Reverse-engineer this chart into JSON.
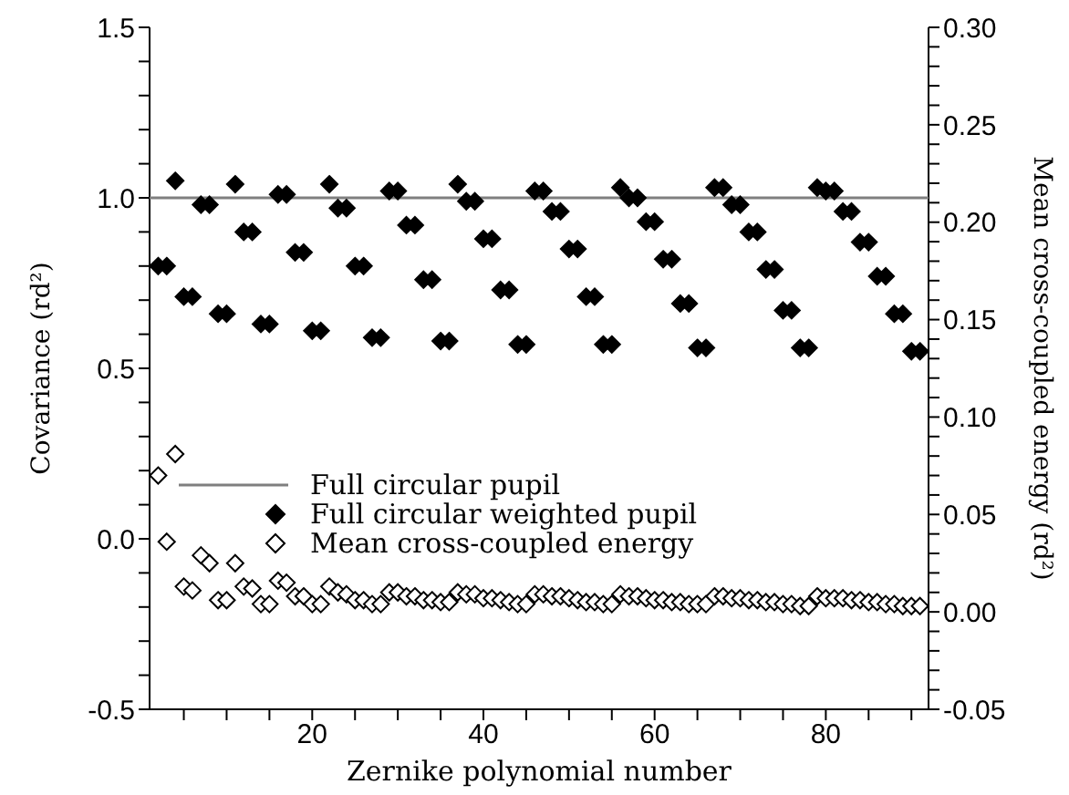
{
  "chart_data": {
    "type": "scatter",
    "xlabel": "Zernike polynomial number",
    "ylabel": "Covariance (rd²)",
    "y2label": "Mean cross-coupled energy (rd²)",
    "xlim": [
      1,
      92
    ],
    "xticks": [
      {
        "value": 5,
        "label": null
      },
      {
        "value": 10,
        "label": null
      },
      {
        "value": 15,
        "label": null
      },
      20,
      {
        "value": 25,
        "label": null
      },
      {
        "value": 30,
        "label": null
      },
      {
        "value": 35,
        "label": null
      },
      40,
      {
        "value": 45,
        "label": null
      },
      {
        "value": 50,
        "label": null
      },
      {
        "value": 55,
        "label": null
      },
      60,
      {
        "value": 65,
        "label": null
      },
      {
        "value": 70,
        "label": null
      },
      {
        "value": 75,
        "label": null
      },
      80,
      {
        "value": 85,
        "label": null
      },
      {
        "value": 90,
        "label": null
      }
    ],
    "ylim": [
      -0.5,
      1.5
    ],
    "yticks": [
      {
        "value": -0.5,
        "label": "-0.5"
      },
      {
        "value": -0.4,
        "label": null
      },
      {
        "value": -0.3,
        "label": null
      },
      {
        "value": -0.2,
        "label": null
      },
      {
        "value": -0.1,
        "label": null
      },
      {
        "value": 0,
        "label": "0.0"
      },
      {
        "value": 0.1,
        "label": null
      },
      {
        "value": 0.2,
        "label": null
      },
      {
        "value": 0.3,
        "label": null
      },
      {
        "value": 0.4,
        "label": null
      },
      {
        "value": 0.5,
        "label": "0.5"
      },
      {
        "value": 0.6,
        "label": null
      },
      {
        "value": 0.7,
        "label": null
      },
      {
        "value": 0.8,
        "label": null
      },
      {
        "value": 0.9,
        "label": null
      },
      {
        "value": 1,
        "label": "1.0"
      },
      {
        "value": 1.1,
        "label": null
      },
      {
        "value": 1.2,
        "label": null
      },
      {
        "value": 1.3,
        "label": null
      },
      {
        "value": 1.4,
        "label": null
      },
      {
        "value": 1.5,
        "label": "1.5"
      }
    ],
    "y2lim": [
      -0.05,
      0.3
    ],
    "y2ticks": [
      {
        "value": -0.05,
        "label": "-0.05"
      },
      {
        "value": -0.04,
        "label": null
      },
      {
        "value": -0.03,
        "label": null
      },
      {
        "value": -0.02,
        "label": null
      },
      {
        "value": -0.01,
        "label": null
      },
      {
        "value": 0,
        "label": "0.00"
      },
      {
        "value": 0.01,
        "label": null
      },
      {
        "value": 0.02,
        "label": null
      },
      {
        "value": 0.03,
        "label": null
      },
      {
        "value": 0.04,
        "label": null
      },
      {
        "value": 0.05,
        "label": "0.05"
      },
      {
        "value": 0.06,
        "label": null
      },
      {
        "value": 0.07,
        "label": null
      },
      {
        "value": 0.08,
        "label": null
      },
      {
        "value": 0.09,
        "label": null
      },
      {
        "value": 0.1,
        "label": "0.10"
      },
      {
        "value": 0.11,
        "label": null
      },
      {
        "value": 0.12,
        "label": null
      },
      {
        "value": 0.13,
        "label": null
      },
      {
        "value": 0.14,
        "label": null
      },
      {
        "value": 0.15,
        "label": "0.15"
      },
      {
        "value": 0.16,
        "label": null
      },
      {
        "value": 0.17,
        "label": null
      },
      {
        "value": 0.18,
        "label": null
      },
      {
        "value": 0.19,
        "label": null
      },
      {
        "value": 0.2,
        "label": "0.20"
      },
      {
        "value": 0.21,
        "label": null
      },
      {
        "value": 0.22,
        "label": null
      },
      {
        "value": 0.23,
        "label": null
      },
      {
        "value": 0.24,
        "label": null
      },
      {
        "value": 0.25,
        "label": "0.25"
      },
      {
        "value": 0.26,
        "label": null
      },
      {
        "value": 0.27,
        "label": null
      },
      {
        "value": 0.28,
        "label": null
      },
      {
        "value": 0.29,
        "label": null
      },
      {
        "value": 0.3,
        "label": "0.30"
      }
    ],
    "legend": "left",
    "x": [
      2,
      3,
      4,
      5,
      6,
      7,
      8,
      9,
      10,
      11,
      12,
      13,
      14,
      15,
      16,
      17,
      18,
      19,
      20,
      21,
      22,
      23,
      24,
      25,
      26,
      27,
      28,
      29,
      30,
      31,
      32,
      33,
      34,
      35,
      36,
      37,
      38,
      39,
      40,
      41,
      42,
      43,
      44,
      45,
      46,
      47,
      48,
      49,
      50,
      51,
      52,
      53,
      54,
      55,
      56,
      57,
      58,
      59,
      60,
      61,
      62,
      63,
      64,
      65,
      66,
      67,
      68,
      69,
      70,
      71,
      72,
      73,
      74,
      75,
      76,
      77,
      78,
      79,
      80,
      81,
      82,
      83,
      84,
      85,
      86,
      87,
      88,
      89,
      90,
      91
    ],
    "series": [
      {
        "name": "Full circular pupil",
        "type": "line",
        "color": "#7f7f7f",
        "marker": "none",
        "x": [
          1,
          92
        ],
        "values": [
          1,
          1
        ]
      },
      {
        "name": "Full circular weighted pupil",
        "color": "#000000",
        "marker": "diamond",
        "values": [
          0.8,
          0.8,
          1.05,
          0.71,
          0.71,
          0.98,
          0.98,
          0.66,
          0.66,
          1.04,
          0.9,
          0.9,
          0.63,
          0.63,
          1.01,
          1.01,
          0.84,
          0.84,
          0.61,
          0.61,
          1.04,
          0.97,
          0.97,
          0.8,
          0.8,
          0.59,
          0.59,
          1.02,
          1.02,
          0.92,
          0.92,
          0.76,
          0.76,
          0.58,
          0.58,
          1.04,
          0.99,
          0.99,
          0.88,
          0.88,
          0.73,
          0.73,
          0.57,
          0.57,
          1.02,
          1.02,
          0.96,
          0.96,
          0.85,
          0.85,
          0.71,
          0.71,
          0.57,
          0.57,
          1.03,
          1.0,
          1.0,
          0.93,
          0.93,
          0.82,
          0.82,
          0.69,
          0.69,
          0.56,
          0.56,
          1.03,
          1.03,
          0.98,
          0.98,
          0.9,
          0.9,
          0.79,
          0.79,
          0.67,
          0.67,
          0.56,
          0.56,
          1.03,
          1.02,
          1.02,
          0.96,
          0.96,
          0.87,
          0.87,
          0.77,
          0.77,
          0.66,
          0.66,
          0.55,
          0.55
        ]
      },
      {
        "name": "Mean cross-coupled energy",
        "color": "#000000",
        "marker": "diamond",
        "axis": "y2",
        "values": [
          0.07,
          0.036,
          0.081,
          0.013,
          0.011,
          0.029,
          0.025,
          0.006,
          0.006,
          0.025,
          0.013,
          0.012,
          0.004,
          0.004,
          0.016,
          0.015,
          0.008,
          0.008,
          0.004,
          0.004,
          0.013,
          0.01,
          0.009,
          0.006,
          0.006,
          0.004,
          0.004,
          0.01,
          0.01,
          0.008,
          0.008,
          0.006,
          0.006,
          0.005,
          0.005,
          0.01,
          0.009,
          0.009,
          0.007,
          0.007,
          0.006,
          0.005,
          0.004,
          0.004,
          0.009,
          0.009,
          0.008,
          0.008,
          0.007,
          0.006,
          0.005,
          0.005,
          0.004,
          0.004,
          0.009,
          0.008,
          0.008,
          0.007,
          0.006,
          0.006,
          0.005,
          0.005,
          0.004,
          0.004,
          0.004,
          0.008,
          0.008,
          0.007,
          0.007,
          0.006,
          0.006,
          0.005,
          0.005,
          0.004,
          0.004,
          0.003,
          0.003,
          0.008,
          0.007,
          0.007,
          0.007,
          0.006,
          0.006,
          0.005,
          0.005,
          0.004,
          0.004,
          0.003,
          0.003,
          0.003
        ]
      }
    ]
  }
}
